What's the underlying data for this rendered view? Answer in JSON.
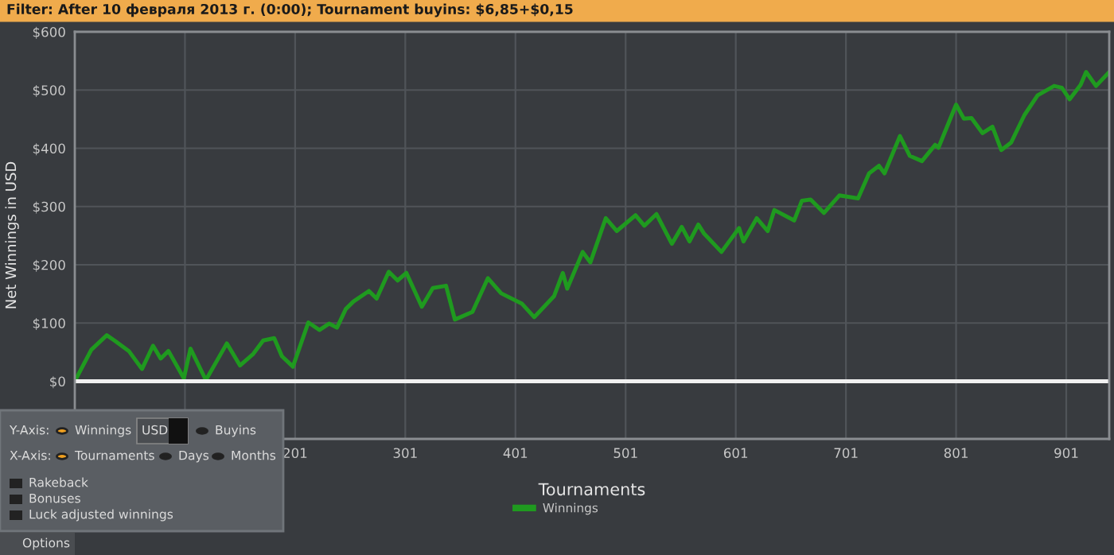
{
  "chart_data": {
    "type": "line",
    "title": "Filter: After 10 февраля 2013 г. (0:00); Tournament buyins: $6,85+$0,15",
    "xlabel": "Tournaments",
    "ylabel": "Net Winnings in USD",
    "xlim": [
      1,
      940
    ],
    "ylim": [
      -99,
      600
    ],
    "xticks": [
      {
        "value": 101,
        "label": null
      },
      201,
      301,
      401,
      501,
      601,
      701,
      801,
      901
    ],
    "yticks": [
      {
        "value": 0,
        "label": "$0"
      },
      {
        "value": 100,
        "label": "$100"
      },
      {
        "value": 200,
        "label": "$200"
      },
      {
        "value": 300,
        "label": "$300"
      },
      {
        "value": 400,
        "label": "$400"
      },
      {
        "value": 500,
        "label": "$500"
      },
      {
        "value": 600,
        "label": "$600"
      }
    ],
    "grid": true,
    "legend": "bottom",
    "marker": "none",
    "line_style": "solid",
    "ref_lines": [
      {
        "axis": "y",
        "value": 0,
        "label": null,
        "color": "#f0f0f0"
      }
    ],
    "series": [
      {
        "name": "Winnings",
        "color": "#1f9a1f",
        "x": [
          1,
          16,
          30,
          37,
          50,
          62,
          72,
          79,
          86,
          100,
          106,
          120,
          139,
          151,
          163,
          172,
          182,
          189,
          199,
          213,
          223,
          232,
          239,
          247,
          254,
          268,
          275,
          286,
          294,
          302,
          316,
          326,
          338,
          346,
          362,
          376,
          388,
          407,
          418,
          436,
          444,
          448,
          462,
          469,
          483,
          493,
          510,
          518,
          529,
          543,
          552,
          559,
          567,
          572,
          588,
          604,
          608,
          620,
          630,
          636,
          654,
          661,
          669,
          681,
          695,
          712,
          722,
          731,
          736,
          750,
          759,
          770,
          782,
          785,
          801,
          808,
          815,
          825,
          834,
          842,
          851,
          863,
          875,
          890,
          897,
          904,
          914,
          919,
          928,
          939
        ],
        "values": [
          0,
          54,
          79,
          70,
          52,
          21,
          61,
          39,
          52,
          5,
          56,
          2,
          65,
          27,
          47,
          70,
          74,
          43,
          25,
          101,
          88,
          99,
          92,
          124,
          137,
          155,
          142,
          188,
          173,
          186,
          128,
          160,
          164,
          106,
          119,
          177,
          151,
          133,
          110,
          146,
          186,
          159,
          222,
          204,
          280,
          258,
          285,
          267,
          287,
          236,
          265,
          240,
          269,
          254,
          222,
          263,
          240,
          280,
          258,
          294,
          276,
          310,
          312,
          289,
          319,
          314,
          357,
          370,
          357,
          421,
          387,
          378,
          406,
          401,
          475,
          451,
          452,
          426,
          437,
          397,
          410,
          457,
          491,
          507,
          504,
          484,
          509,
          531,
          507,
          529
        ]
      }
    ],
    "annotations": [
      "Y-Axis:",
      "Winnings",
      "USD",
      "Buyins",
      "X-Axis:",
      "Tournaments",
      "Days",
      "Months",
      "Rakeback",
      "Bonuses",
      "Luck adjusted winnings",
      "Options"
    ]
  }
}
